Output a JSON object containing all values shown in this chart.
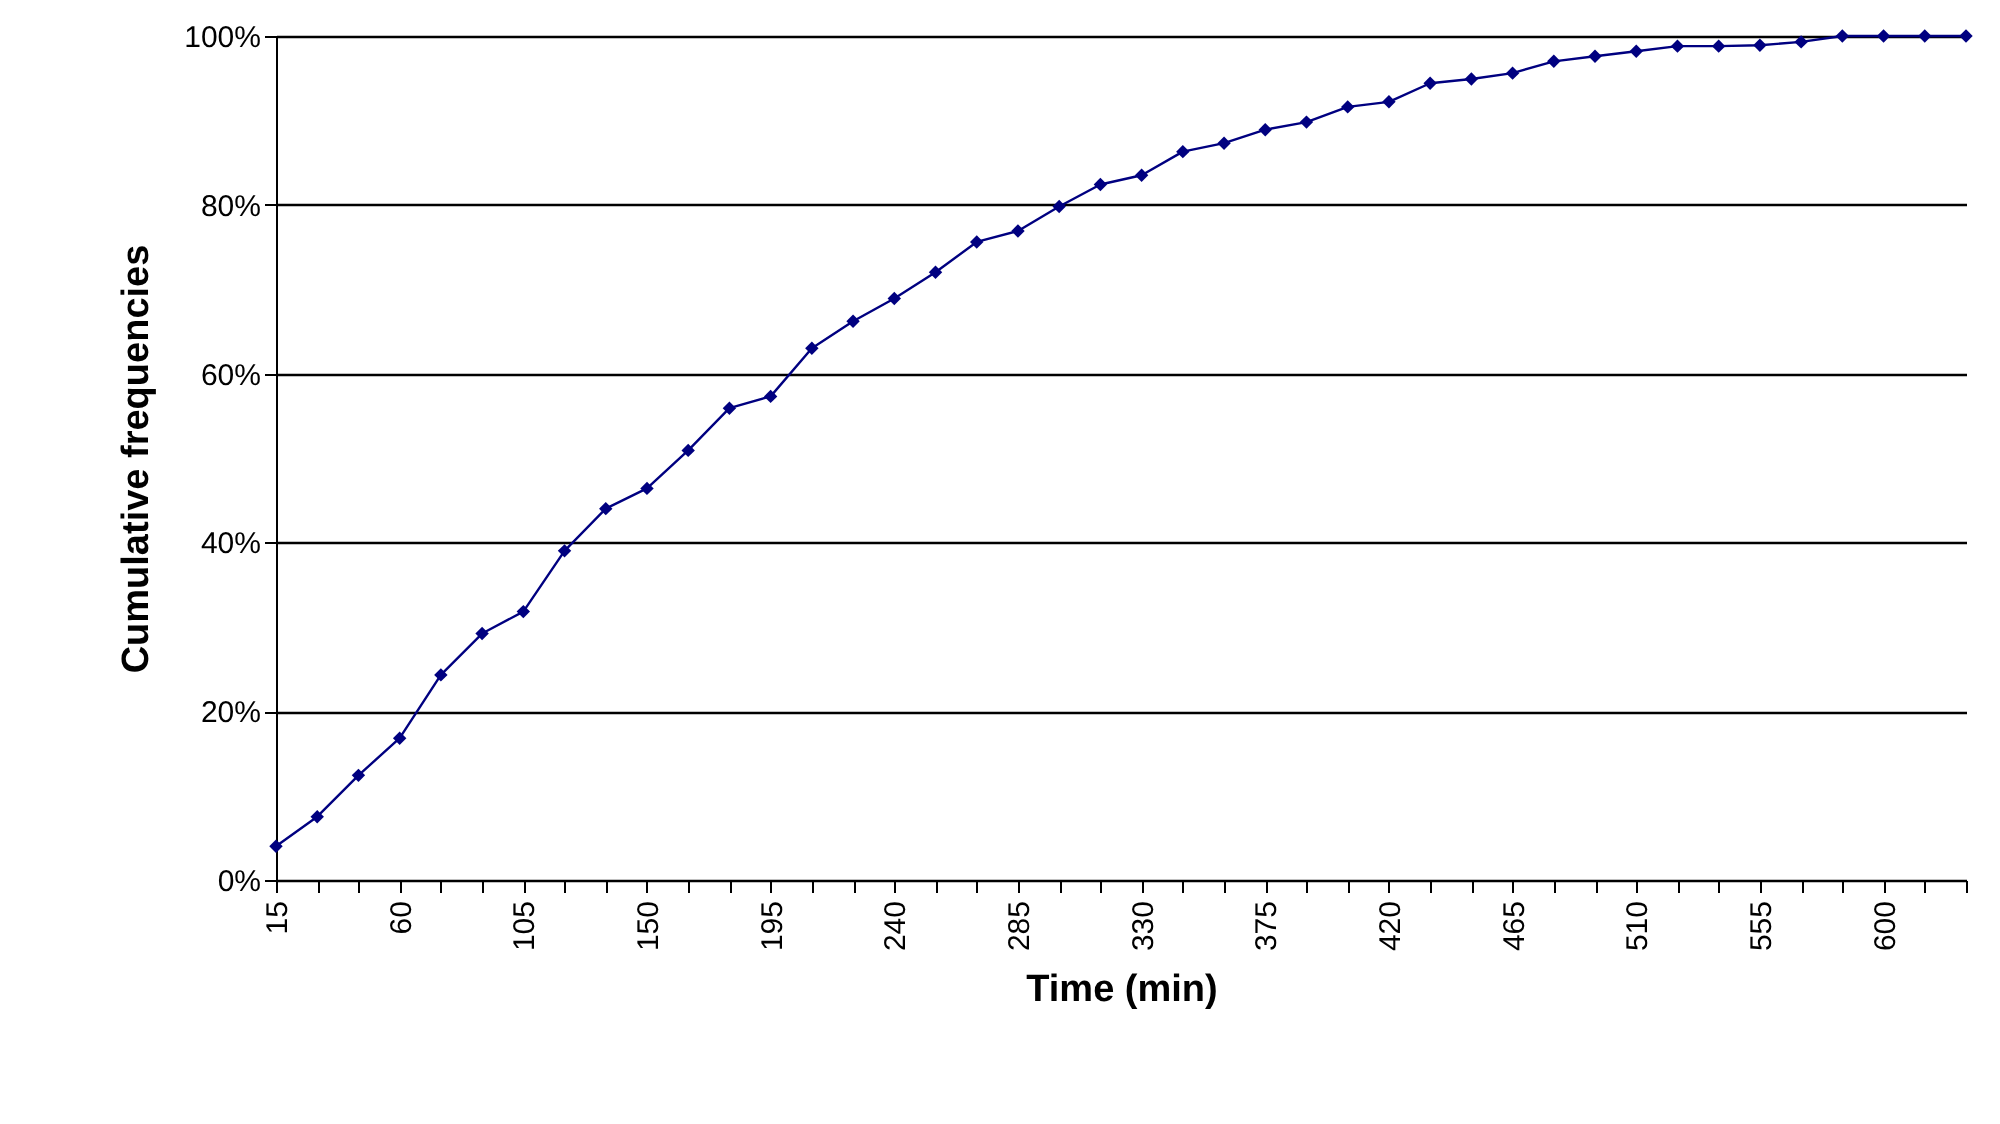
{
  "chart_data": {
    "type": "line",
    "xlabel": "Time (min)",
    "ylabel": "Cumulative frequencies",
    "x": [
      15,
      30,
      45,
      60,
      75,
      90,
      105,
      120,
      135,
      150,
      165,
      180,
      195,
      210,
      225,
      240,
      255,
      270,
      285,
      300,
      315,
      330,
      345,
      360,
      375,
      390,
      405,
      420,
      435,
      450,
      465,
      480,
      495,
      510,
      525,
      540,
      555,
      570,
      585,
      600,
      615,
      630
    ],
    "series": [
      {
        "color": "#000080",
        "values": [
          4,
          7.5,
          12.4,
          16.8,
          24.3,
          29.2,
          31.8,
          39,
          44,
          46.4,
          50.9,
          55.9,
          57.3,
          63,
          66.2,
          68.9,
          72,
          75.6,
          76.9,
          79.8,
          82.4,
          83.5,
          86.3,
          87.3,
          88.9,
          89.8,
          91.6,
          92.2,
          94.4,
          94.9,
          95.6,
          97,
          97.6,
          98.2,
          98.8,
          98.8,
          98.9,
          99.3,
          100,
          100,
          100,
          100
        ]
      }
    ],
    "xlim": [
      15,
      630
    ],
    "xticks": [
      15,
      {
        "value": 30,
        "label": null
      },
      {
        "value": 45,
        "label": null
      },
      60,
      {
        "value": 75,
        "label": null
      },
      {
        "value": 90,
        "label": null
      },
      105,
      {
        "value": 120,
        "label": null
      },
      {
        "value": 135,
        "label": null
      },
      150,
      {
        "value": 165,
        "label": null
      },
      {
        "value": 180,
        "label": null
      },
      195,
      {
        "value": 210,
        "label": null
      },
      {
        "value": 225,
        "label": null
      },
      240,
      {
        "value": 255,
        "label": null
      },
      {
        "value": 270,
        "label": null
      },
      285,
      {
        "value": 300,
        "label": null
      },
      {
        "value": 315,
        "label": null
      },
      330,
      {
        "value": 345,
        "label": null
      },
      {
        "value": 360,
        "label": null
      },
      375,
      {
        "value": 390,
        "label": null
      },
      {
        "value": 405,
        "label": null
      },
      420,
      {
        "value": 435,
        "label": null
      },
      {
        "value": 450,
        "label": null
      },
      465,
      {
        "value": 480,
        "label": null
      },
      {
        "value": 495,
        "label": null
      },
      510,
      {
        "value": 525,
        "label": null
      },
      {
        "value": 540,
        "label": null
      },
      555,
      {
        "value": 570,
        "label": null
      },
      {
        "value": 585,
        "label": null
      },
      600,
      {
        "value": 615,
        "label": null
      },
      {
        "value": 630,
        "label": null
      }
    ],
    "ylim": [
      0,
      100
    ],
    "yticks": [
      {
        "value": 0,
        "label": "0%"
      },
      {
        "value": 20,
        "label": "20%"
      },
      {
        "value": 40,
        "label": "40%"
      },
      {
        "value": 60,
        "label": "60%"
      },
      {
        "value": 80,
        "label": "80%"
      },
      {
        "value": 100,
        "label": "100%"
      }
    ],
    "grid": "y",
    "marker": "diamond",
    "line_style": "solid"
  }
}
